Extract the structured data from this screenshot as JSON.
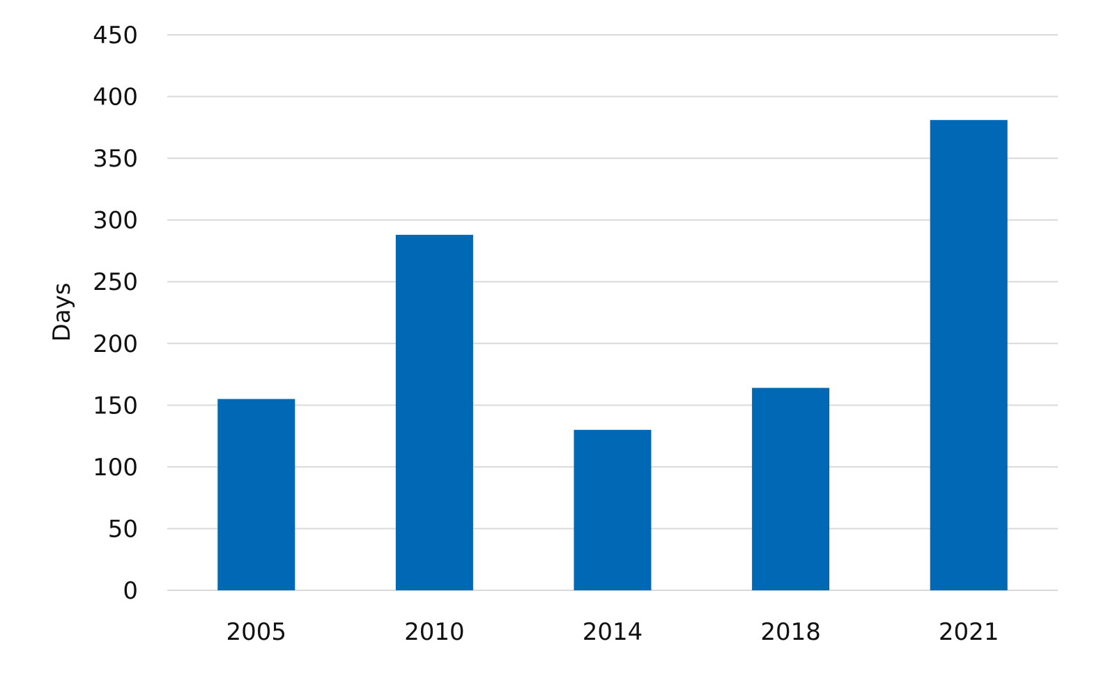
{
  "chart_data": {
    "type": "bar",
    "title": "",
    "xlabel": "",
    "ylabel": "Days",
    "categories": [
      "2005",
      "2010",
      "2014",
      "2018",
      "2021"
    ],
    "values": [
      155,
      288,
      130,
      164,
      381
    ],
    "ylim": [
      0,
      450
    ],
    "yticks": [
      0,
      50,
      100,
      150,
      200,
      250,
      300,
      350,
      400,
      450
    ],
    "grid": true,
    "legend": "none",
    "bar_color": "#0068B5",
    "grid_color": "#D9D9D9"
  }
}
